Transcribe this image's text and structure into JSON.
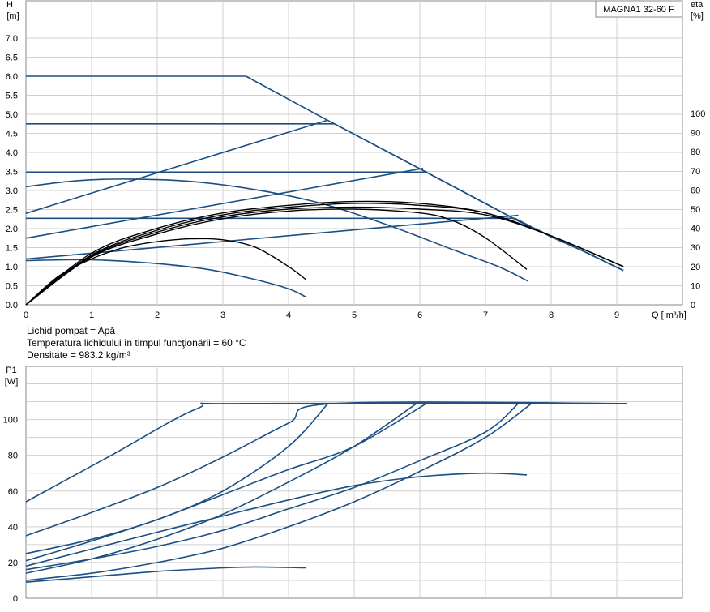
{
  "chart_data": [
    {
      "type": "line",
      "title": "MAGNA1 32-60 F",
      "ylabel_line1": "H",
      "ylabel_line2": "[m]",
      "y2label_line1": "eta",
      "y2label_line2": "[%]",
      "xlabel": "Q [ m³/h]",
      "xlim": [
        0,
        10
      ],
      "ylim": [
        0,
        8
      ],
      "y2lim": [
        0,
        100
      ],
      "xticks": [
        0,
        1,
        2,
        3,
        4,
        5,
        6,
        7,
        8,
        9
      ],
      "yticks": [
        "0.0",
        "0.5",
        "1.0",
        "1.5",
        "2.0",
        "2.5",
        "3.0",
        "3.5",
        "4.0",
        "4.5",
        "5.0",
        "5.5",
        "6.0",
        "6.5",
        "7.0"
      ],
      "y2ticks": [
        0,
        10,
        20,
        30,
        40,
        50,
        60,
        70,
        80,
        90,
        100
      ],
      "grid": true,
      "colors": {
        "head": "#1c4f82",
        "efficiency": "#000000",
        "grid": "#d0d0d0"
      },
      "series": [
        {
          "kind": "head",
          "points": [
            [
              0,
              6.0
            ],
            [
              3.35,
              6.0
            ],
            [
              4.5,
              4.93
            ],
            [
              6.0,
              3.57
            ],
            [
              7.5,
              2.2
            ],
            [
              8.5,
              1.4
            ],
            [
              9.1,
              0.9
            ]
          ]
        },
        {
          "kind": "head",
          "points": [
            [
              0,
              4.75
            ],
            [
              4.7,
              4.75
            ],
            [
              6.0,
              3.57
            ],
            [
              7.5,
              2.2
            ],
            [
              8.5,
              1.4
            ],
            [
              9.1,
              0.9
            ]
          ]
        },
        {
          "kind": "head",
          "points": [
            [
              0,
              3.48
            ],
            [
              6.1,
              3.48
            ],
            [
              7.5,
              2.2
            ],
            [
              8.5,
              1.4
            ],
            [
              9.1,
              0.9
            ]
          ]
        },
        {
          "kind": "head",
          "points": [
            [
              0,
              2.27
            ],
            [
              7.45,
              2.27
            ],
            [
              8.0,
              1.78
            ],
            [
              8.5,
              1.4
            ],
            [
              9.1,
              0.9
            ]
          ]
        },
        {
          "kind": "head",
          "points": [
            [
              0,
              3.1
            ],
            [
              0.8,
              3.26
            ],
            [
              1.6,
              3.3
            ],
            [
              2.5,
              3.24
            ],
            [
              3.5,
              3.02
            ],
            [
              4.5,
              2.66
            ],
            [
              5.5,
              2.1
            ],
            [
              6.5,
              1.45
            ],
            [
              7.2,
              1.0
            ],
            [
              7.65,
              0.62
            ]
          ]
        },
        {
          "kind": "head",
          "points": [
            [
              0,
              1.16
            ],
            [
              1.0,
              1.18
            ],
            [
              2.0,
              1.08
            ],
            [
              2.8,
              0.92
            ],
            [
              3.5,
              0.66
            ],
            [
              4.0,
              0.42
            ],
            [
              4.27,
              0.2
            ]
          ]
        },
        {
          "kind": "head",
          "points": [
            [
              0,
              2.4
            ],
            [
              4.6,
              4.85
            ]
          ]
        },
        {
          "kind": "head",
          "points": [
            [
              0,
              1.75
            ],
            [
              6.05,
              3.58
            ]
          ]
        },
        {
          "kind": "head",
          "points": [
            [
              0,
              1.2
            ],
            [
              7.5,
              2.35
            ]
          ]
        },
        {
          "kind": "efficiency",
          "points": [
            [
              0,
              0
            ],
            [
              0.5,
              15
            ],
            [
              1.0,
              24
            ],
            [
              1.5,
              30
            ],
            [
              2.0,
              33
            ],
            [
              2.5,
              34.5
            ],
            [
              3.0,
              34
            ],
            [
              3.5,
              30
            ],
            [
              4.0,
              20
            ],
            [
              4.27,
              13
            ]
          ]
        },
        {
          "kind": "efficiency",
          "points": [
            [
              0,
              0
            ],
            [
              1.0,
              25
            ],
            [
              2.0,
              37
            ],
            [
              3.0,
              45
            ],
            [
              4.0,
              49
            ],
            [
              5.0,
              50
            ],
            [
              6.0,
              48
            ],
            [
              6.5,
              44
            ],
            [
              7.0,
              35
            ],
            [
              7.63,
              18.5
            ]
          ]
        },
        {
          "kind": "efficiency",
          "points": [
            [
              0,
              0
            ],
            [
              1.0,
              26
            ],
            [
              2.0,
              39
            ],
            [
              3.0,
              47
            ],
            [
              4.0,
              51
            ],
            [
              5.0,
              53
            ],
            [
              6.0,
              52
            ],
            [
              7.0,
              48
            ],
            [
              8.0,
              36
            ],
            [
              9.1,
              20
            ]
          ]
        },
        {
          "kind": "efficiency",
          "points": [
            [
              0,
              0
            ],
            [
              1.0,
              27
            ],
            [
              2.0,
              40
            ],
            [
              3.0,
              48
            ],
            [
              4.0,
              52
            ],
            [
              5.0,
              54
            ],
            [
              6.0,
              53
            ],
            [
              7.0,
              48
            ],
            [
              8.0,
              36
            ],
            [
              9.1,
              20
            ]
          ]
        },
        {
          "kind": "efficiency",
          "points": [
            [
              0,
              0
            ],
            [
              1.0,
              25.5
            ],
            [
              2.0,
              38
            ],
            [
              3.0,
              46
            ],
            [
              4.0,
              50
            ],
            [
              5.0,
              51
            ],
            [
              6.0,
              50
            ],
            [
              7.0,
              47
            ],
            [
              8.0,
              36
            ],
            [
              9.1,
              20
            ]
          ]
        }
      ]
    },
    {
      "type": "line",
      "title": "",
      "ylabel_line1": "P1",
      "ylabel_line2": "[W]",
      "xlim": [
        0,
        10
      ],
      "ylim": [
        0,
        125
      ],
      "yticks": [
        0,
        20,
        40,
        60,
        80,
        100
      ],
      "grid": true,
      "colors": {
        "power": "#1c4f82",
        "grid": "#d0d0d0"
      },
      "series": [
        {
          "kind": "power",
          "points": [
            [
              0,
              54
            ],
            [
              1.3,
              80
            ],
            [
              2.6,
              106
            ],
            [
              3.3,
              109
            ],
            [
              9.15,
              109
            ]
          ]
        },
        {
          "kind": "power",
          "points": [
            [
              0,
              35
            ],
            [
              1.0,
              48
            ],
            [
              2.0,
              62
            ],
            [
              3.0,
              79
            ],
            [
              4.0,
              98
            ],
            [
              4.7,
              109
            ],
            [
              9.15,
              109
            ]
          ]
        },
        {
          "kind": "power",
          "points": [
            [
              0,
              25
            ],
            [
              1.0,
              33
            ],
            [
              2.0,
              44
            ],
            [
              3.0,
              60
            ],
            [
              4.0,
              85
            ],
            [
              4.6,
              109
            ]
          ]
        },
        {
          "kind": "power",
          "points": [
            [
              0,
              21
            ],
            [
              1.0,
              32
            ],
            [
              2.0,
              44
            ],
            [
              3.0,
              58
            ],
            [
              4.0,
              72
            ],
            [
              5.0,
              85
            ],
            [
              6.1,
              109
            ]
          ]
        },
        {
          "kind": "power",
          "points": [
            [
              0,
              14
            ],
            [
              1.0,
              22
            ],
            [
              2.0,
              33
            ],
            [
              3.0,
              47
            ],
            [
              4.0,
              65
            ],
            [
              5.0,
              85
            ],
            [
              5.95,
              109
            ]
          ]
        },
        {
          "kind": "power",
          "points": [
            [
              0,
              16
            ],
            [
              1.0,
              22
            ],
            [
              2.0,
              29
            ],
            [
              3.0,
              38
            ],
            [
              4.0,
              50
            ],
            [
              5.0,
              62
            ],
            [
              6.0,
              77
            ],
            [
              7.0,
              93
            ],
            [
              7.5,
              109
            ]
          ]
        },
        {
          "kind": "power",
          "points": [
            [
              0,
              10
            ],
            [
              1.0,
              14
            ],
            [
              2.0,
              20
            ],
            [
              3.0,
              28
            ],
            [
              4.0,
              40
            ],
            [
              5.0,
              54
            ],
            [
              6.0,
              71
            ],
            [
              7.0,
              90
            ],
            [
              7.7,
              109
            ]
          ]
        },
        {
          "kind": "power",
          "points": [
            [
              0,
              18
            ],
            [
              2.0,
              37
            ],
            [
              3.0,
              46
            ],
            [
              4.0,
              55
            ],
            [
              5.0,
              63
            ],
            [
              6.0,
              68
            ],
            [
              7.0,
              70
            ],
            [
              7.63,
              69
            ]
          ]
        },
        {
          "kind": "power",
          "points": [
            [
              0,
              9
            ],
            [
              1.0,
              12
            ],
            [
              2.0,
              15
            ],
            [
              3.0,
              17
            ],
            [
              3.5,
              17.5
            ],
            [
              4.27,
              17
            ]
          ]
        }
      ]
    }
  ],
  "notes": {
    "liquid": "Lichid pompat = Apă",
    "temperature": " Temperatura lichidului în timpul funcţionării = 60  °C",
    "density": "Densitate = 983.2  kg/m³"
  }
}
